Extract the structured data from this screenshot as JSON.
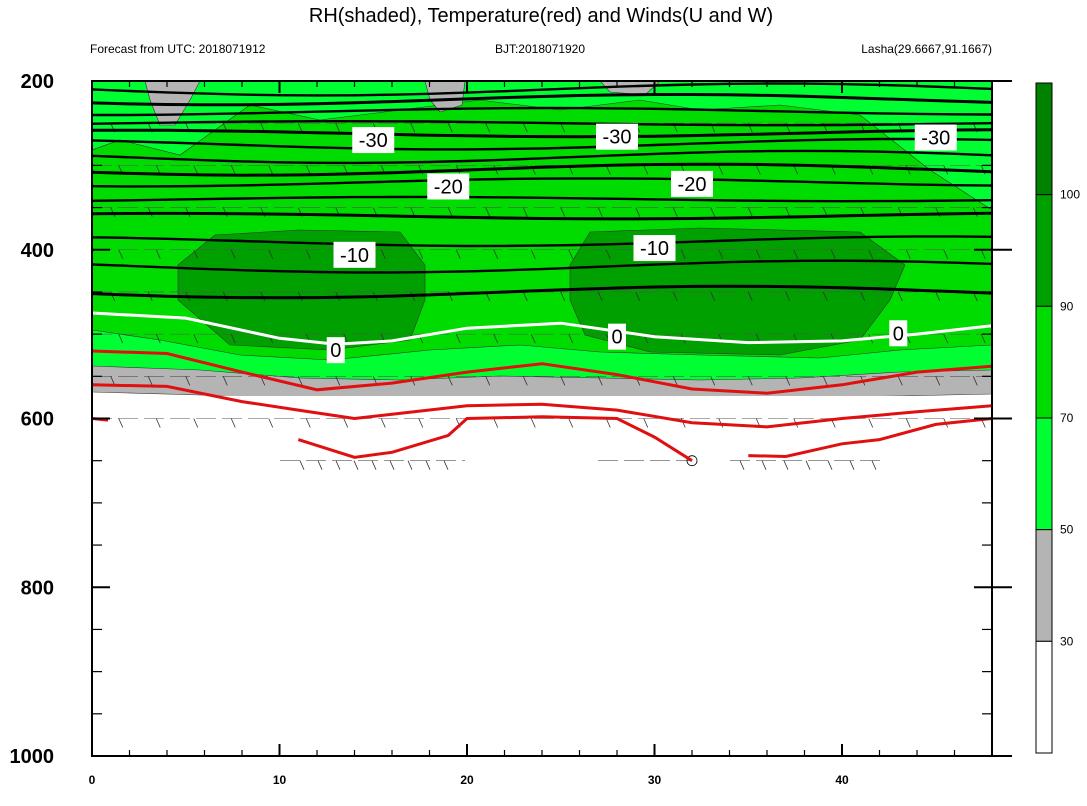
{
  "chart_data": {
    "type": "heatmap",
    "title": "RH(shaded), Temperature(red) and Winds(U and W)",
    "subtitle_left": "Forecast from UTC: 2018071912",
    "subtitle_center": "BJT:2018071920",
    "subtitle_right": "Lasha(29.6667,91.1667)",
    "xlim": [
      0,
      48
    ],
    "ylim": [
      1000,
      200
    ],
    "x_ticks": [
      0,
      10,
      20,
      30,
      40
    ],
    "y_ticks": [
      200,
      400,
      600,
      800,
      1000
    ],
    "rh_levels": [
      30,
      50,
      70,
      90,
      100
    ],
    "rh_colors": [
      "#ffffff",
      "#b4b4b4",
      "#00ff32",
      "#00dc00",
      "#00a000",
      "#008200"
    ],
    "temperature_contours": [
      {
        "value": -30,
        "label": "-30",
        "label_at": [
          [
            15,
            270
          ],
          [
            28,
            266
          ],
          [
            45,
            267
          ]
        ]
      },
      {
        "value": -20,
        "label": "-20",
        "label_at": [
          [
            19,
            325
          ],
          [
            32,
            322
          ]
        ]
      },
      {
        "value": -10,
        "label": "-10",
        "label_at": [
          [
            14,
            406
          ],
          [
            30,
            398
          ]
        ]
      },
      {
        "value": 0,
        "label": "0",
        "label_at": [
          [
            13,
            519
          ],
          [
            28,
            503
          ],
          [
            43,
            499
          ]
        ]
      }
    ],
    "freezing_line": [
      [
        0,
        475
      ],
      [
        5,
        481
      ],
      [
        10,
        505
      ],
      [
        13,
        512
      ],
      [
        16,
        508
      ],
      [
        20,
        493
      ],
      [
        25,
        487
      ],
      [
        30,
        503
      ],
      [
        35,
        510
      ],
      [
        40,
        508
      ],
      [
        44,
        500
      ],
      [
        48,
        490
      ]
    ]
  }
}
